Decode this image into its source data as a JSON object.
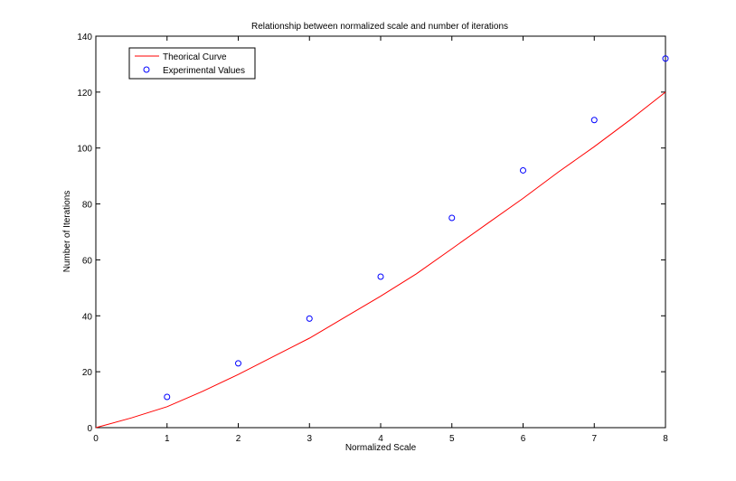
{
  "chart_data": {
    "type": "line",
    "title": "Relationship between normalized scale and number of iterations",
    "xlabel": "Normalized Scale",
    "ylabel": "Number of Iterations",
    "xlim": [
      0,
      8
    ],
    "ylim": [
      0,
      140
    ],
    "xticks": [
      0,
      1,
      2,
      3,
      4,
      5,
      6,
      7,
      8
    ],
    "yticks": [
      0,
      20,
      40,
      60,
      80,
      100,
      120,
      140
    ],
    "grid": false,
    "legend_position": "top-left",
    "series": [
      {
        "name": "Theorical Curve",
        "style": "line",
        "color": "#ff0000",
        "x": [
          0,
          0.5,
          1,
          1.5,
          2,
          2.5,
          3,
          3.5,
          4,
          4.5,
          5,
          5.5,
          6,
          6.5,
          7,
          7.5,
          8
        ],
        "y": [
          0,
          3.5,
          7.5,
          13,
          19,
          25.5,
          32,
          39.5,
          47,
          55,
          64,
          73,
          82,
          91.5,
          100.5,
          110,
          120
        ]
      },
      {
        "name": "Experimental Values",
        "style": "markers",
        "marker": "circle",
        "color": "#0000ff",
        "x": [
          1,
          2,
          3,
          4,
          5,
          6,
          7,
          8
        ],
        "y": [
          11,
          23,
          39,
          54,
          75,
          92,
          110,
          132
        ]
      }
    ]
  }
}
